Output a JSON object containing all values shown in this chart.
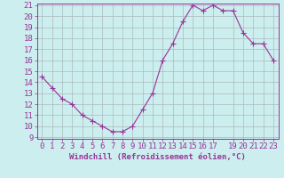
{
  "x": [
    0,
    1,
    2,
    3,
    4,
    5,
    6,
    7,
    8,
    9,
    10,
    11,
    12,
    13,
    14,
    15,
    16,
    17,
    18,
    19,
    20,
    21,
    22,
    23
  ],
  "y": [
    14.5,
    13.5,
    12.5,
    12.0,
    11.0,
    10.5,
    10.0,
    9.5,
    9.5,
    10.0,
    11.5,
    13.0,
    16.0,
    17.5,
    19.5,
    21.0,
    20.5,
    21.0,
    20.5,
    20.5,
    18.5,
    17.5,
    17.5,
    16.0
  ],
  "line_color": "#993399",
  "marker_color": "#993399",
  "bg_color": "#cceeee",
  "grid_color": "#aabbbb",
  "xlabel": "Windchill (Refroidissement éolien,°C)",
  "ylim": [
    9,
    21
  ],
  "xlim": [
    -0.5,
    23.5
  ],
  "yticks": [
    9,
    10,
    11,
    12,
    13,
    14,
    15,
    16,
    17,
    18,
    19,
    20,
    21
  ],
  "xticks": [
    0,
    1,
    2,
    3,
    4,
    5,
    6,
    7,
    8,
    9,
    10,
    11,
    12,
    13,
    14,
    15,
    16,
    17,
    19,
    20,
    21,
    22,
    23
  ],
  "axis_color": "#993399",
  "font_size": 6.5,
  "xlabel_fontsize": 6.5,
  "marker_size": 2.0,
  "linewidth": 0.8
}
